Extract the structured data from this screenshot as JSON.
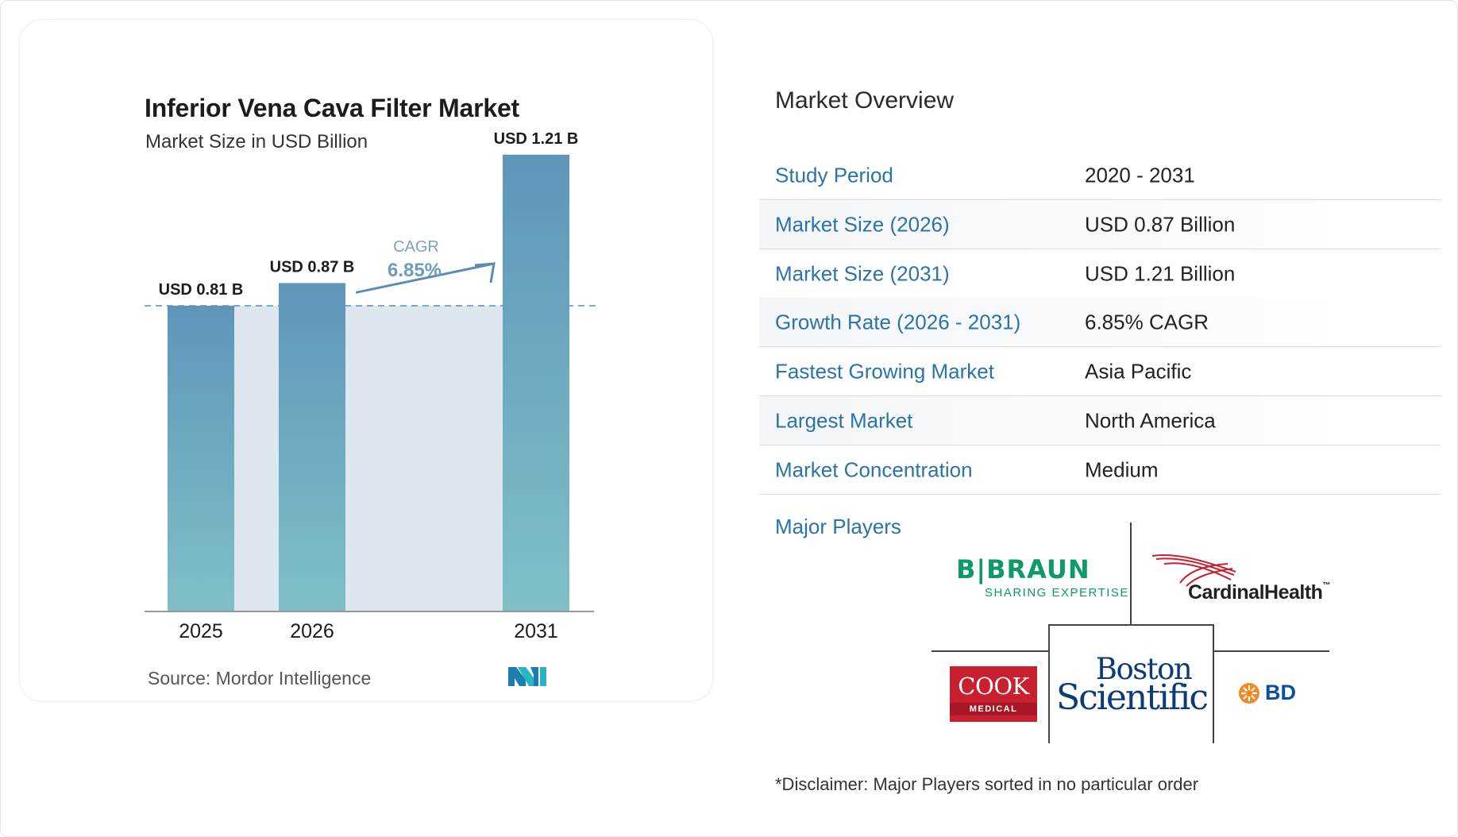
{
  "chart": {
    "title": "Inferior Vena Cava Filter Market",
    "subtitle": "Market Size in USD Billion",
    "source": "Source:  Mordor Intelligence",
    "cagr_label": "CAGR",
    "cagr_value": "6.85%"
  },
  "chart_data": {
    "type": "bar",
    "categories": [
      "2025",
      "2026",
      "2031"
    ],
    "values": [
      0.81,
      0.87,
      1.21
    ],
    "data_labels": [
      "USD 0.81 B",
      "USD 0.87 B",
      "USD 1.21 B"
    ],
    "title": "Inferior Vena Cava Filter Market",
    "subtitle": "Market Size in USD Billion",
    "ylabel": "",
    "xlabel": "",
    "ylim": [
      0,
      1.3
    ],
    "baseline_reference": 0.81,
    "grid": false,
    "legend": "none",
    "colors": {
      "bar_top": "#5f95ba",
      "bar_bottom": "#7fc0c7",
      "shade": "#dde7ef",
      "arrow": "#5b8db5",
      "baseline": "#5b8db5"
    }
  },
  "overview": {
    "title": "Market Overview",
    "rows": [
      {
        "label": "Study Period",
        "value": "2020 - 2031"
      },
      {
        "label": "Market Size (2026)",
        "value": "USD 0.87 Billion"
      },
      {
        "label": "Market Size (2031)",
        "value": "USD 1.21 Billion"
      },
      {
        "label": "Growth Rate (2026 - 2031)",
        "value": "6.85% CAGR"
      },
      {
        "label": "Fastest Growing Market",
        "value": "Asia Pacific"
      },
      {
        "label": "Largest Market",
        "value": "North America"
      },
      {
        "label": "Market Concentration",
        "value": "Medium"
      }
    ],
    "players_label": "Major Players",
    "players": {
      "bbraun": {
        "name": "B|BRAUN",
        "tagline": "SHARING EXPERTISE"
      },
      "cardinal": {
        "name": "CardinalHealth",
        "tm": "™"
      },
      "cook": {
        "name": "COOK",
        "sub": "MEDICAL"
      },
      "boston": {
        "line1": "Boston",
        "line2": "Scientific"
      },
      "bd": {
        "name": "BD"
      }
    },
    "disclaimer": "*Disclaimer: Major Players sorted in no particular order"
  },
  "colors": {
    "label_blue": "#2a74a8",
    "text_dark": "#222222"
  }
}
